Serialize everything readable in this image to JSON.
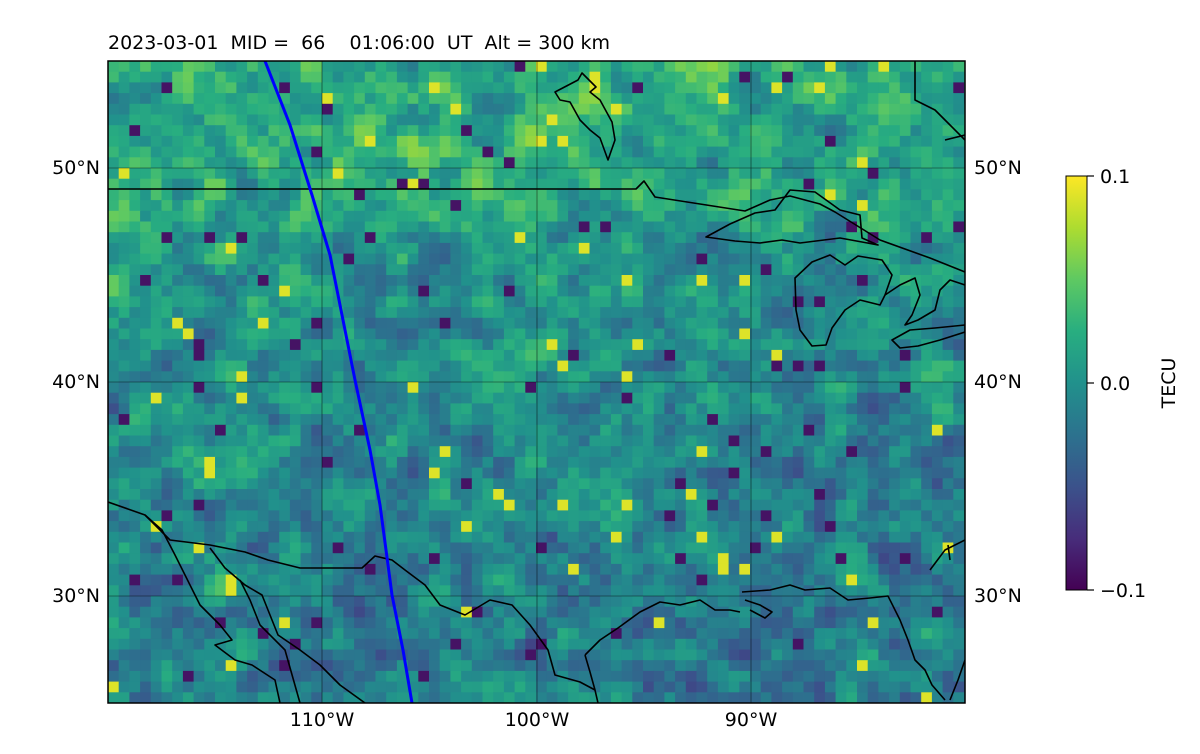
{
  "title": "2023-03-01  MID =  66    01:06:00  UT  Alt = 300 km",
  "lat_labels": [
    "50°N",
    "40°N",
    "30°N"
  ],
  "lon_labels": [
    "110°W",
    "100°W",
    "90°W"
  ],
  "colorbar": {
    "label": "TECU",
    "ticks": [
      "0.1",
      "0.0",
      "−0.1"
    ],
    "colormap": "viridis",
    "vmin": -0.1,
    "vmax": 0.1
  },
  "map": {
    "projection": "plate-carree",
    "lon_range": [
      -120,
      -80
    ],
    "lat_range": [
      25,
      55
    ],
    "gridlines": true,
    "terminator_color": "#0000ff",
    "coastline_color": "#000000"
  }
}
